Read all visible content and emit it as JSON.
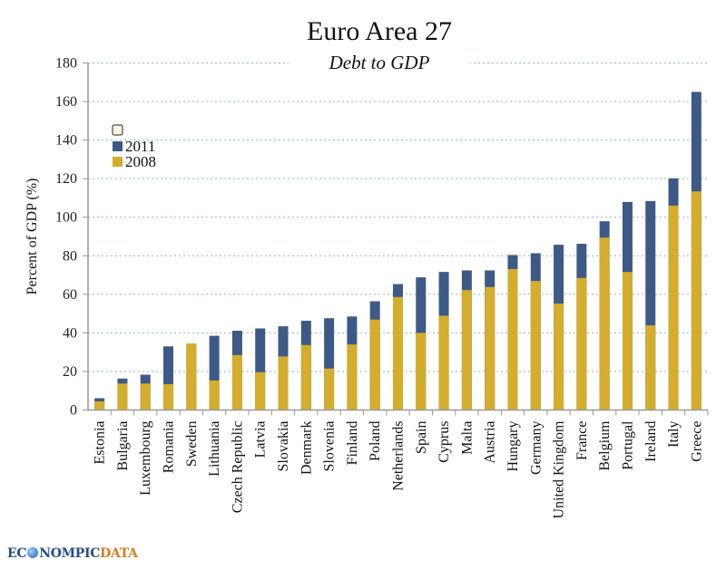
{
  "chart_data": {
    "type": "bar",
    "stacked": "overlapping",
    "title": "Euro Area 27",
    "subtitle": "Debt to GDP",
    "xlabel": "",
    "ylabel": "Percent of GDP (%)",
    "ylim": [
      0,
      180
    ],
    "yticks": [
      0,
      20,
      40,
      60,
      80,
      100,
      120,
      140,
      160,
      180
    ],
    "grid": true,
    "legend_position": "top-left",
    "legend": [
      {
        "name": "",
        "color": "#fbf3dc"
      },
      {
        "name": "2011",
        "color": "#3d5a87"
      },
      {
        "name": "2008",
        "color": "#d4ad2c"
      }
    ],
    "categories": [
      "Estonia",
      "Bulgaria",
      "Luxembourg",
      "Romania",
      "Sweden",
      "Lithuania",
      "Czech Republic",
      "Latvia",
      "Slovakia",
      "Denmark",
      "Slovenia",
      "Finland",
      "Poland",
      "Netherlands",
      "Spain",
      "Cyprus",
      "Malta",
      "Austria",
      "Hungary",
      "Germany",
      "United Kingdom",
      "France",
      "Belgium",
      "Portugal",
      "Ireland",
      "Italy",
      "Greece"
    ],
    "series": [
      {
        "name": "2011",
        "color": "#3d5a87",
        "values": [
          6.1,
          16.3,
          18.3,
          33.0,
          34.0,
          38.5,
          41.1,
          42.3,
          43.4,
          46.3,
          47.6,
          48.5,
          56.4,
          65.3,
          68.8,
          71.6,
          72.4,
          72.4,
          80.4,
          81.3,
          85.7,
          86.2,
          97.9,
          107.9,
          108.4,
          120.1,
          165.0
        ]
      },
      {
        "name": "2008",
        "color": "#d4ad2c",
        "values": [
          4.5,
          13.7,
          13.7,
          13.4,
          34.5,
          15.3,
          28.5,
          19.6,
          27.8,
          33.7,
          21.5,
          34.0,
          46.9,
          58.6,
          40.0,
          48.9,
          62.2,
          63.8,
          73.1,
          66.9,
          55.2,
          68.5,
          89.4,
          71.6,
          43.9,
          106.0,
          113.4
        ]
      }
    ]
  },
  "branding": {
    "logo_part1": "EC",
    "logo_part2": "NOMPIC",
    "logo_part3": "DATA"
  }
}
